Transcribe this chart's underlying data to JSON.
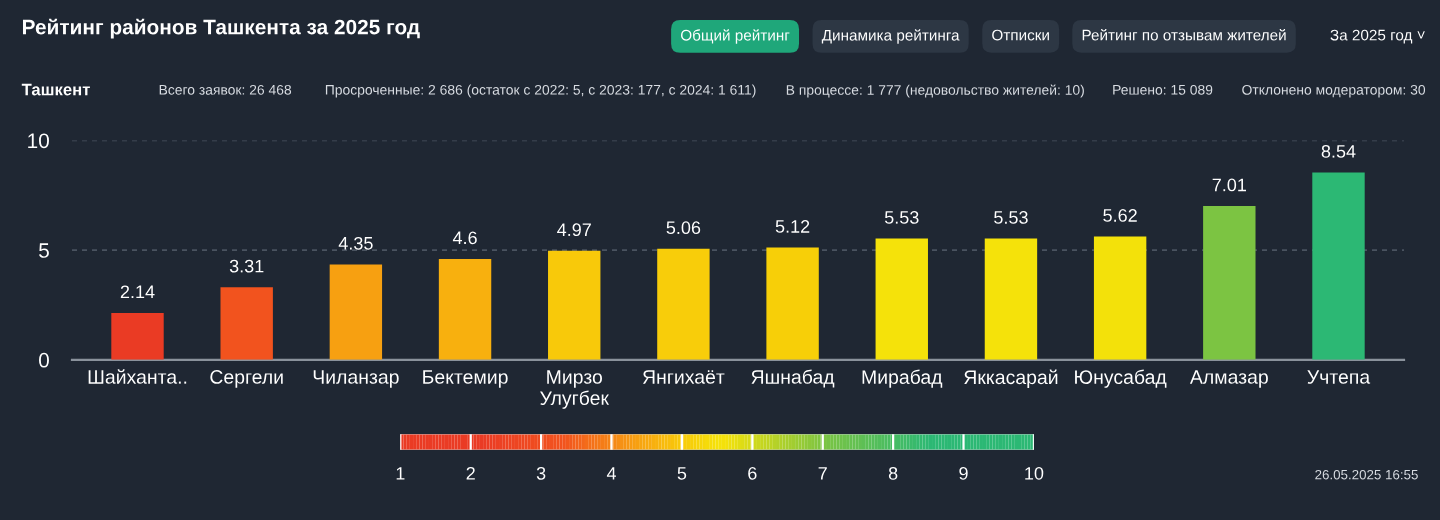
{
  "chart_data": {
    "type": "bar",
    "title": "Рейтинг районов Ташкента за 2025 год",
    "categories": [
      "Шайханта..",
      "Сергели",
      "Чиланзар",
      "Бектемир",
      "Мирзо\nУлугбек",
      "Янгихаёт",
      "Яшнабад",
      "Мирабад",
      "Яккасарай",
      "Юнусабад",
      "Алмазар",
      "Учтепа"
    ],
    "values": [
      2.14,
      3.31,
      4.35,
      4.6,
      4.97,
      5.06,
      5.12,
      5.53,
      5.53,
      5.62,
      7.01,
      8.54
    ],
    "colors": [
      "#ea3b24",
      "#f2531e",
      "#f7a011",
      "#f8b00e",
      "#f8c90a",
      "#f8cd0a",
      "#f7cf08",
      "#f5e20a",
      "#f5e20a",
      "#f3e10a",
      "#7cc442",
      "#2cb874"
    ],
    "data_labels": true,
    "ylim": [
      0,
      10
    ],
    "yticks": [
      0,
      5,
      10
    ],
    "grid": "y",
    "legend": false,
    "clim": [
      1,
      10
    ],
    "cticks": [
      1,
      2,
      3,
      4,
      5,
      6,
      7,
      8,
      9,
      10
    ],
    "annotations": [
      "Ташкент",
      "Всего заявок: 26 468",
      "Просроченные: 2 686 (остаток с 2022: 5, с 2023: 177, с 2024: 1 611)",
      "В процессе: 1 777 (недовольство жителей: 10)",
      "Решено: 15 089",
      "Отклонено модератором: 30",
      "Общий рейтинг",
      "Динамика рейтинга",
      "Отписки",
      "Рейтинг по отзывам жителей",
      "За 2025 год ˅",
      "26.05.2025 16:55"
    ]
  }
}
